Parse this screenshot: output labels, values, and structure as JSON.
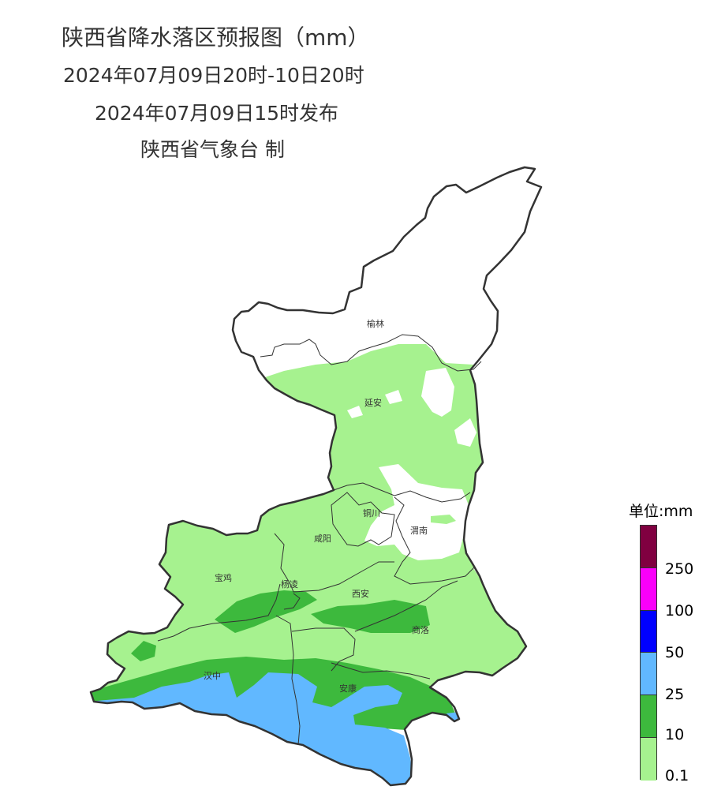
{
  "header": {
    "title": "陕西省降水落区预报图（mm）",
    "period": "2024年07月09日20时-10日20时",
    "issued": "2024年07月09日15时发布",
    "issuer": "陕西省气象台 制"
  },
  "cities": [
    {
      "name": "榆林"
    },
    {
      "name": "延安"
    },
    {
      "name": "铜川"
    },
    {
      "name": "渭南"
    },
    {
      "name": "咸阳"
    },
    {
      "name": "宝鸡"
    },
    {
      "name": "杨凌"
    },
    {
      "name": "西安"
    },
    {
      "name": "商洛"
    },
    {
      "name": "汉中"
    },
    {
      "name": "安康"
    }
  ],
  "legend": {
    "title": "单位:mm",
    "levels": [
      {
        "color": "#800040"
      },
      {
        "color": "#FA00FA"
      },
      {
        "color": "#0000FF"
      },
      {
        "color": "#61B8FF"
      },
      {
        "color": "#3DB93D"
      },
      {
        "color": "#A6F28F"
      }
    ],
    "labels": [
      "250",
      "100",
      "50",
      "25",
      "10",
      "0.1"
    ]
  },
  "colors": {
    "none": "#FFFFFF",
    "light": "#A6F28F",
    "moderate": "#3DB93D",
    "heavy": "#61B8FF",
    "boundary": "#333333"
  }
}
